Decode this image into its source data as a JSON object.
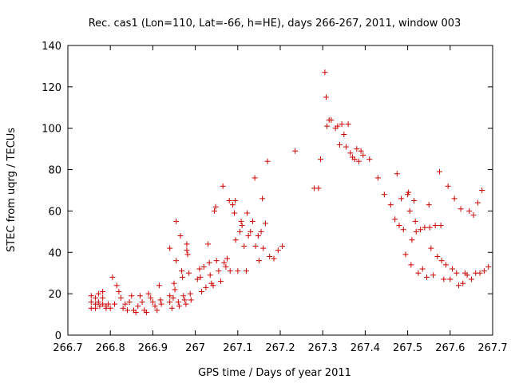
{
  "chart_data": {
    "type": "scatter",
    "title": "Rec. cas1 (Lon=110, Lat=-66, h=HE), days 266-267, 2011, window 003",
    "xlabel": "GPS time / Days of year 2011",
    "ylabel": "STEC from uqrg / TECUs",
    "xlim": [
      266.7,
      267.7
    ],
    "ylim": [
      0,
      140
    ],
    "x_ticks": [
      "266.7",
      "266.8",
      "266.9",
      "267",
      "267.1",
      "267.2",
      "267.3",
      "267.4",
      "267.5",
      "267.6",
      "267.7"
    ],
    "y_ticks": [
      "0",
      "20",
      "40",
      "60",
      "80",
      "100",
      "120",
      "140"
    ],
    "grid": false,
    "marker": "+",
    "color": "#cc0000",
    "series": [
      {
        "points": [
          [
            266.755,
            19
          ],
          [
            266.755,
            16
          ],
          [
            266.755,
            13
          ],
          [
            266.765,
            18
          ],
          [
            266.765,
            15
          ],
          [
            266.765,
            13
          ],
          [
            266.772,
            20
          ],
          [
            266.772,
            16
          ],
          [
            266.775,
            14
          ],
          [
            266.782,
            21
          ],
          [
            266.782,
            18
          ],
          [
            266.782,
            15
          ],
          [
            266.79,
            14
          ],
          [
            266.79,
            13
          ],
          [
            266.795,
            15
          ],
          [
            266.8,
            13
          ],
          [
            266.805,
            28
          ],
          [
            266.81,
            15
          ],
          [
            266.815,
            24
          ],
          [
            266.82,
            21
          ],
          [
            266.825,
            18
          ],
          [
            266.83,
            13
          ],
          [
            266.835,
            15
          ],
          [
            266.84,
            12
          ],
          [
            266.845,
            16
          ],
          [
            266.85,
            19
          ],
          [
            266.855,
            12
          ],
          [
            266.86,
            11
          ],
          [
            266.865,
            14
          ],
          [
            266.87,
            19
          ],
          [
            266.875,
            16
          ],
          [
            266.88,
            12
          ],
          [
            266.885,
            11
          ],
          [
            266.89,
            20
          ],
          [
            266.895,
            18
          ],
          [
            266.9,
            16
          ],
          [
            266.905,
            14
          ],
          [
            266.91,
            12
          ],
          [
            266.915,
            24
          ],
          [
            266.918,
            17
          ],
          [
            266.92,
            15
          ],
          [
            266.94,
            42
          ],
          [
            266.94,
            19
          ],
          [
            266.94,
            16
          ],
          [
            266.945,
            13
          ],
          [
            266.948,
            18
          ],
          [
            266.95,
            25
          ],
          [
            266.952,
            22
          ],
          [
            266.955,
            36
          ],
          [
            266.955,
            55
          ],
          [
            266.96,
            16
          ],
          [
            266.962,
            14
          ],
          [
            266.965,
            48
          ],
          [
            266.968,
            31
          ],
          [
            266.97,
            28
          ],
          [
            266.972,
            19
          ],
          [
            266.975,
            17
          ],
          [
            266.978,
            15
          ],
          [
            266.98,
            44
          ],
          [
            266.98,
            41
          ],
          [
            266.982,
            39
          ],
          [
            266.985,
            30
          ],
          [
            266.988,
            20
          ],
          [
            266.99,
            17
          ],
          [
            267.005,
            27
          ],
          [
            267.01,
            32
          ],
          [
            267.012,
            28
          ],
          [
            267.015,
            21
          ],
          [
            267.02,
            33
          ],
          [
            267.025,
            23
          ],
          [
            267.03,
            44
          ],
          [
            267.033,
            35
          ],
          [
            267.035,
            29
          ],
          [
            267.038,
            25
          ],
          [
            267.042,
            24
          ],
          [
            267.045,
            60
          ],
          [
            267.048,
            62
          ],
          [
            267.05,
            36
          ],
          [
            267.055,
            31
          ],
          [
            267.06,
            26
          ],
          [
            267.065,
            72
          ],
          [
            267.068,
            35
          ],
          [
            267.072,
            33
          ],
          [
            267.075,
            37
          ],
          [
            267.08,
            65
          ],
          [
            267.082,
            31
          ],
          [
            267.088,
            63
          ],
          [
            267.092,
            59
          ],
          [
            267.094,
            65
          ],
          [
            267.095,
            46
          ],
          [
            267.1,
            31
          ],
          [
            267.105,
            50
          ],
          [
            267.108,
            55
          ],
          [
            267.11,
            53
          ],
          [
            267.115,
            43
          ],
          [
            267.12,
            31
          ],
          [
            267.122,
            59
          ],
          [
            267.125,
            48
          ],
          [
            267.13,
            50
          ],
          [
            267.135,
            55
          ],
          [
            267.14,
            76
          ],
          [
            267.142,
            43
          ],
          [
            267.148,
            48
          ],
          [
            267.15,
            36
          ],
          [
            267.155,
            50
          ],
          [
            267.158,
            66
          ],
          [
            267.16,
            42
          ],
          [
            267.165,
            54
          ],
          [
            267.17,
            84
          ],
          [
            267.175,
            38
          ],
          [
            267.185,
            37
          ],
          [
            267.195,
            41
          ],
          [
            267.205,
            43
          ],
          [
            267.235,
            89
          ],
          [
            267.28,
            71
          ],
          [
            267.29,
            71
          ],
          [
            267.295,
            85
          ],
          [
            267.305,
            127
          ],
          [
            267.308,
            115
          ],
          [
            267.31,
            101
          ],
          [
            267.315,
            104
          ],
          [
            267.32,
            104
          ],
          [
            267.33,
            100
          ],
          [
            267.335,
            101
          ],
          [
            267.34,
            92
          ],
          [
            267.345,
            102
          ],
          [
            267.35,
            97
          ],
          [
            267.355,
            91
          ],
          [
            267.36,
            102
          ],
          [
            267.365,
            88
          ],
          [
            267.37,
            86
          ],
          [
            267.375,
            85
          ],
          [
            267.38,
            90
          ],
          [
            267.385,
            84
          ],
          [
            267.39,
            89
          ],
          [
            267.395,
            87
          ],
          [
            267.41,
            85
          ],
          [
            267.43,
            76
          ],
          [
            267.445,
            68
          ],
          [
            267.46,
            63
          ],
          [
            267.47,
            56
          ],
          [
            267.475,
            78
          ],
          [
            267.48,
            53
          ],
          [
            267.485,
            66
          ],
          [
            267.49,
            51
          ],
          [
            267.495,
            39
          ],
          [
            267.5,
            68
          ],
          [
            267.502,
            69
          ],
          [
            267.505,
            60
          ],
          [
            267.508,
            34
          ],
          [
            267.51,
            46
          ],
          [
            267.515,
            65
          ],
          [
            267.518,
            55
          ],
          [
            267.52,
            50
          ],
          [
            267.525,
            30
          ],
          [
            267.53,
            51
          ],
          [
            267.535,
            32
          ],
          [
            267.54,
            52
          ],
          [
            267.545,
            28
          ],
          [
            267.55,
            63
          ],
          [
            267.552,
            52
          ],
          [
            267.555,
            42
          ],
          [
            267.56,
            29
          ],
          [
            267.565,
            53
          ],
          [
            267.57,
            38
          ],
          [
            267.575,
            79
          ],
          [
            267.578,
            53
          ],
          [
            267.58,
            36
          ],
          [
            267.585,
            27
          ],
          [
            267.59,
            34
          ],
          [
            267.595,
            72
          ],
          [
            267.6,
            27
          ],
          [
            267.605,
            32
          ],
          [
            267.61,
            66
          ],
          [
            267.615,
            30
          ],
          [
            267.62,
            24
          ],
          [
            267.625,
            61
          ],
          [
            267.63,
            25
          ],
          [
            267.635,
            30
          ],
          [
            267.64,
            29
          ],
          [
            267.645,
            60
          ],
          [
            267.65,
            27
          ],
          [
            267.655,
            58
          ],
          [
            267.66,
            30
          ],
          [
            267.665,
            64
          ],
          [
            267.67,
            30
          ],
          [
            267.675,
            70
          ],
          [
            267.68,
            31
          ],
          [
            267.69,
            33
          ]
        ]
      }
    ]
  }
}
